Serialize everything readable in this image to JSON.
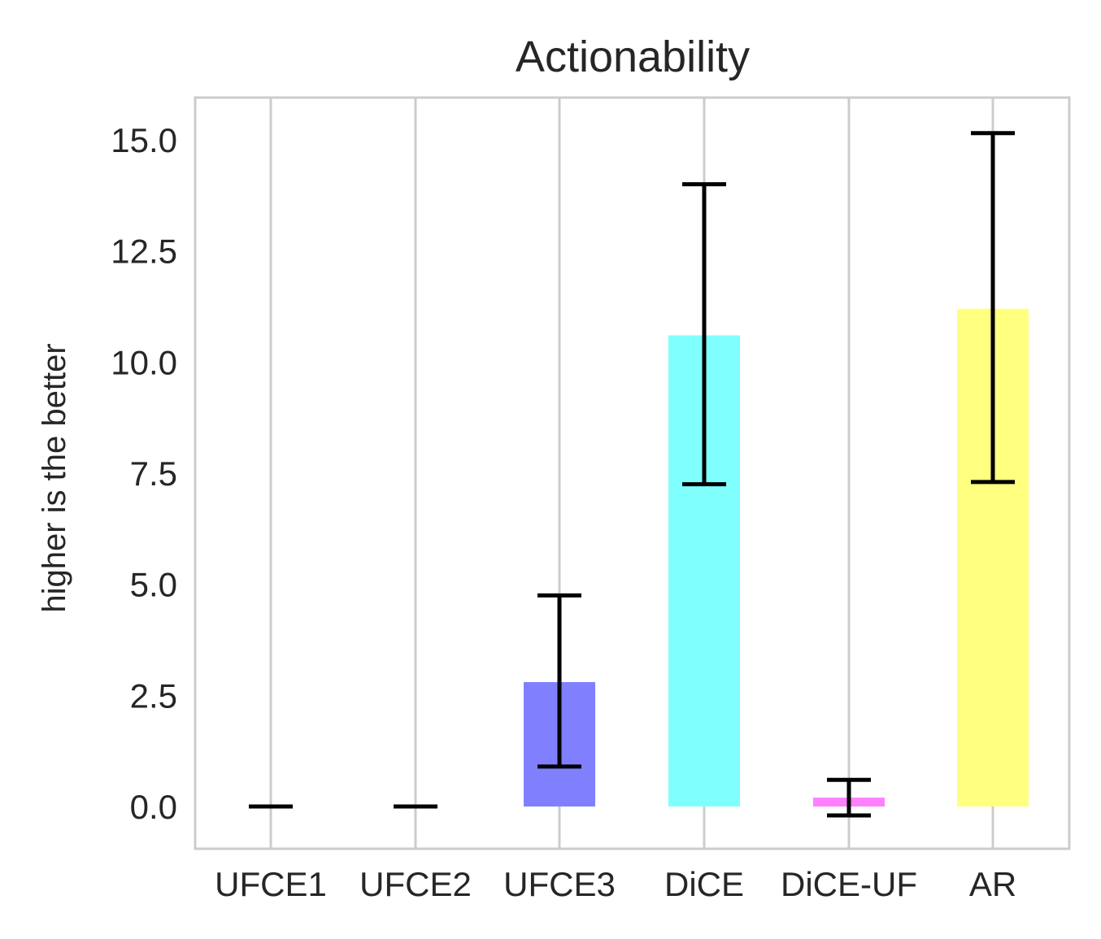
{
  "chart_data": {
    "type": "bar",
    "title": "Actionability",
    "xlabel": "",
    "ylabel": "higher is the better",
    "categories": [
      "UFCE1",
      "UFCE2",
      "UFCE3",
      "DiCE",
      "DiCE-UF",
      "AR"
    ],
    "values": [
      0.0,
      0.0,
      2.8,
      10.6,
      0.2,
      11.2
    ],
    "error_low": [
      0.0,
      0.0,
      0.9,
      7.25,
      -0.2,
      7.3
    ],
    "error_high": [
      0.0,
      0.0,
      4.75,
      14.0,
      0.6,
      15.15
    ],
    "colors": [
      "#8080ff",
      "#8080ff",
      "#8080ff",
      "#80ffff",
      "#ff80ff",
      "#ffff80"
    ],
    "ylim": [
      -0.95,
      15.95
    ],
    "yticks": [
      "0.0",
      "2.5",
      "5.0",
      "7.5",
      "10.0",
      "12.5",
      "15.0"
    ],
    "grid": "vertical",
    "legend": "none"
  }
}
